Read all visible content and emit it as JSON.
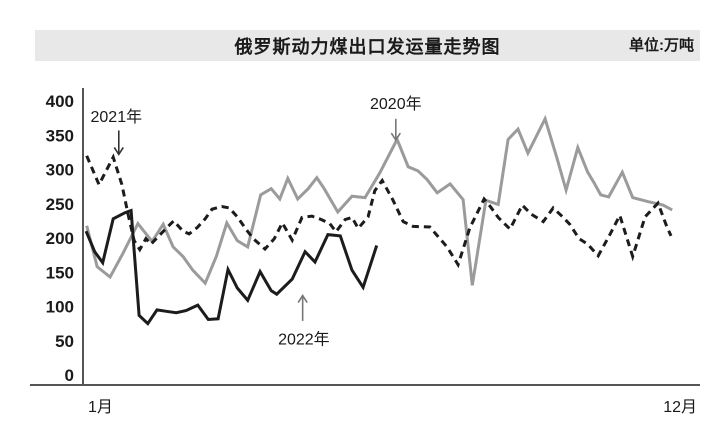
{
  "header": {
    "title": "俄罗斯动力煤出口发运量走势图",
    "unit_label": "单位:万吨"
  },
  "chart_data": {
    "type": "line",
    "title": "俄罗斯动力煤出口发运量走势图",
    "unit": "万吨",
    "ylim": [
      0,
      400
    ],
    "yticks": [
      400,
      350,
      300,
      250,
      200,
      150,
      100,
      50,
      0
    ],
    "grid": false,
    "x_axis": {
      "start_label": "1月",
      "end_label": "12月",
      "note": "x stored as fraction along Jan-Dec axis, values in 万吨"
    },
    "series": [
      {
        "name": "2020年",
        "color": "#9b9b9b",
        "dash": null,
        "width": 3,
        "points": [
          [
            0.006,
            218
          ],
          [
            0.023,
            158
          ],
          [
            0.044,
            143
          ],
          [
            0.065,
            178
          ],
          [
            0.089,
            221
          ],
          [
            0.112,
            195
          ],
          [
            0.13,
            220
          ],
          [
            0.146,
            187
          ],
          [
            0.162,
            173
          ],
          [
            0.178,
            153
          ],
          [
            0.198,
            134
          ],
          [
            0.216,
            173
          ],
          [
            0.233,
            222
          ],
          [
            0.25,
            196
          ],
          [
            0.267,
            187
          ],
          [
            0.288,
            263
          ],
          [
            0.305,
            272
          ],
          [
            0.319,
            257
          ],
          [
            0.332,
            287
          ],
          [
            0.348,
            257
          ],
          [
            0.365,
            272
          ],
          [
            0.379,
            288
          ],
          [
            0.391,
            272
          ],
          [
            0.413,
            238
          ],
          [
            0.436,
            261
          ],
          [
            0.457,
            259
          ],
          [
            0.481,
            295
          ],
          [
            0.509,
            344
          ],
          [
            0.527,
            304
          ],
          [
            0.543,
            298
          ],
          [
            0.558,
            285
          ],
          [
            0.574,
            266
          ],
          [
            0.595,
            279
          ],
          [
            0.616,
            256
          ],
          [
            0.631,
            131
          ],
          [
            0.653,
            255
          ],
          [
            0.673,
            249
          ],
          [
            0.689,
            344
          ],
          [
            0.705,
            359
          ],
          [
            0.721,
            324
          ],
          [
            0.749,
            374
          ],
          [
            0.768,
            317
          ],
          [
            0.783,
            270
          ],
          [
            0.802,
            332
          ],
          [
            0.818,
            296
          ],
          [
            0.828,
            281
          ],
          [
            0.839,
            263
          ],
          [
            0.852,
            260
          ],
          [
            0.874,
            296
          ],
          [
            0.891,
            259
          ],
          [
            0.916,
            253
          ],
          [
            0.94,
            248
          ],
          [
            0.955,
            241
          ]
        ]
      },
      {
        "name": "2021年",
        "color": "#1c1c1c",
        "dash": "7 5",
        "width": 3,
        "points": [
          [
            0.006,
            320
          ],
          [
            0.026,
            278
          ],
          [
            0.049,
            318
          ],
          [
            0.063,
            278
          ],
          [
            0.073,
            235
          ],
          [
            0.083,
            196
          ],
          [
            0.092,
            183
          ],
          [
            0.102,
            199
          ],
          [
            0.11,
            191
          ],
          [
            0.123,
            203
          ],
          [
            0.138,
            217
          ],
          [
            0.147,
            225
          ],
          [
            0.162,
            210
          ],
          [
            0.172,
            206
          ],
          [
            0.185,
            215
          ],
          [
            0.198,
            228
          ],
          [
            0.209,
            242
          ],
          [
            0.225,
            246
          ],
          [
            0.237,
            244
          ],
          [
            0.25,
            231
          ],
          [
            0.264,
            213
          ],
          [
            0.276,
            199
          ],
          [
            0.295,
            184
          ],
          [
            0.31,
            199
          ],
          [
            0.323,
            222
          ],
          [
            0.339,
            197
          ],
          [
            0.355,
            230
          ],
          [
            0.371,
            232
          ],
          [
            0.386,
            227
          ],
          [
            0.4,
            221
          ],
          [
            0.41,
            209
          ],
          [
            0.425,
            227
          ],
          [
            0.436,
            230
          ],
          [
            0.446,
            214
          ],
          [
            0.462,
            231
          ],
          [
            0.473,
            269
          ],
          [
            0.485,
            284
          ],
          [
            0.502,
            256
          ],
          [
            0.519,
            224
          ],
          [
            0.535,
            217
          ],
          [
            0.562,
            216
          ],
          [
            0.59,
            187
          ],
          [
            0.608,
            161
          ],
          [
            0.627,
            215
          ],
          [
            0.65,
            257
          ],
          [
            0.661,
            245
          ],
          [
            0.673,
            230
          ],
          [
            0.692,
            213
          ],
          [
            0.712,
            248
          ],
          [
            0.726,
            235
          ],
          [
            0.746,
            224
          ],
          [
            0.762,
            244
          ],
          [
            0.776,
            232
          ],
          [
            0.789,
            220
          ],
          [
            0.804,
            199
          ],
          [
            0.818,
            191
          ],
          [
            0.835,
            174
          ],
          [
            0.854,
            205
          ],
          [
            0.87,
            233
          ],
          [
            0.891,
            173
          ],
          [
            0.911,
            231
          ],
          [
            0.932,
            251
          ],
          [
            0.946,
            217
          ],
          [
            0.953,
            203
          ]
        ]
      },
      {
        "name": "2022年",
        "color": "#1c1c1c",
        "dash": null,
        "width": 3,
        "points": [
          [
            0.005,
            210
          ],
          [
            0.019,
            180
          ],
          [
            0.032,
            164
          ],
          [
            0.049,
            228
          ],
          [
            0.068,
            237
          ],
          [
            0.078,
            240
          ],
          [
            0.091,
            87
          ],
          [
            0.105,
            75
          ],
          [
            0.12,
            95
          ],
          [
            0.135,
            93
          ],
          [
            0.151,
            91
          ],
          [
            0.167,
            94
          ],
          [
            0.186,
            102
          ],
          [
            0.203,
            81
          ],
          [
            0.219,
            82
          ],
          [
            0.235,
            154
          ],
          [
            0.25,
            127
          ],
          [
            0.267,
            109
          ],
          [
            0.287,
            151
          ],
          [
            0.305,
            123
          ],
          [
            0.314,
            118
          ],
          [
            0.339,
            140
          ],
          [
            0.36,
            180
          ],
          [
            0.376,
            165
          ],
          [
            0.397,
            205
          ],
          [
            0.417,
            203
          ],
          [
            0.436,
            153
          ],
          [
            0.454,
            128
          ],
          [
            0.476,
            189
          ]
        ]
      }
    ],
    "annotations": [
      {
        "text": "2021年",
        "xf": 0.054,
        "label_value": 378,
        "arrow_xf": 0.058,
        "arrow_from": 357,
        "arrow_to": 322,
        "dir": "down",
        "color": "#333333"
      },
      {
        "text": "2020年",
        "xf": 0.507,
        "label_value": 397,
        "arrow_xf": 0.507,
        "arrow_from": 374,
        "arrow_to": 343,
        "dir": "down",
        "color": "#777777"
      },
      {
        "text": "2022年",
        "xf": 0.358,
        "label_value": 53,
        "arrow_xf": 0.356,
        "arrow_from": 79,
        "arrow_to": 116,
        "dir": "up",
        "color": "#777777"
      }
    ]
  },
  "colors": {
    "header_bg": "#e8e8e8",
    "axis": "#555555",
    "text": "#1a1a1a"
  }
}
